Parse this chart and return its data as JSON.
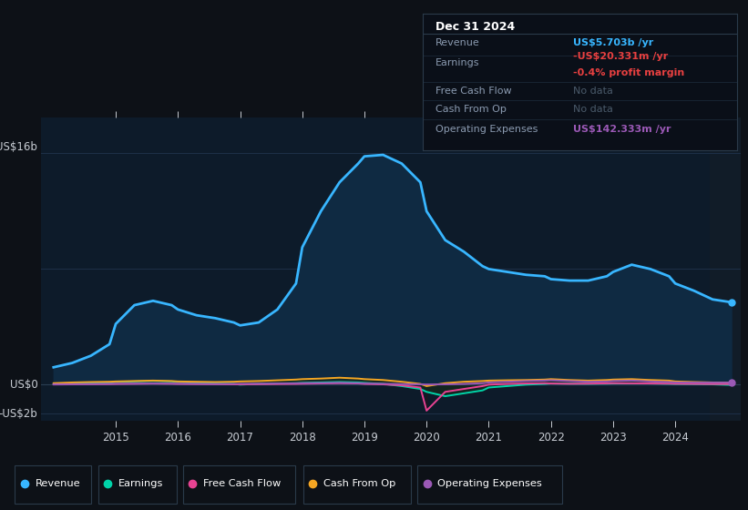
{
  "bg_color": "#0d1117",
  "plot_bg_color": "#0d1b2a",
  "title": "Dec 31 2024",
  "ylabel_top": "US$16b",
  "ylabel_zero": "US$0",
  "ylabel_neg": "-US$2b",
  "x_years": [
    2014.0,
    2014.3,
    2014.6,
    2014.9,
    2015.0,
    2015.3,
    2015.6,
    2015.9,
    2016.0,
    2016.3,
    2016.6,
    2016.9,
    2017.0,
    2017.3,
    2017.6,
    2017.9,
    2018.0,
    2018.3,
    2018.6,
    2018.9,
    2019.0,
    2019.3,
    2019.6,
    2019.9,
    2020.0,
    2020.3,
    2020.6,
    2020.9,
    2021.0,
    2021.3,
    2021.6,
    2021.9,
    2022.0,
    2022.3,
    2022.6,
    2022.9,
    2023.0,
    2023.3,
    2023.6,
    2023.9,
    2024.0,
    2024.3,
    2024.6,
    2024.9
  ],
  "revenue": [
    1.2,
    1.5,
    2.0,
    2.8,
    4.2,
    5.5,
    5.8,
    5.5,
    5.2,
    4.8,
    4.6,
    4.3,
    4.1,
    4.3,
    5.2,
    7.0,
    9.5,
    12.0,
    14.0,
    15.3,
    15.8,
    15.9,
    15.3,
    14.0,
    12.0,
    10.0,
    9.2,
    8.2,
    8.0,
    7.8,
    7.6,
    7.5,
    7.3,
    7.2,
    7.2,
    7.5,
    7.8,
    8.3,
    8.0,
    7.5,
    7.0,
    6.5,
    5.9,
    5.7
  ],
  "earnings": [
    0.05,
    0.08,
    0.1,
    0.12,
    0.18,
    0.22,
    0.25,
    0.22,
    0.18,
    0.12,
    0.08,
    0.05,
    0.0,
    0.05,
    0.08,
    0.1,
    0.12,
    0.15,
    0.18,
    0.15,
    0.12,
    0.05,
    -0.1,
    -0.3,
    -0.5,
    -0.8,
    -0.6,
    -0.4,
    -0.2,
    -0.1,
    0.0,
    0.05,
    0.08,
    0.07,
    0.06,
    0.07,
    0.08,
    0.09,
    0.08,
    0.06,
    0.05,
    0.04,
    0.02,
    -0.02
  ],
  "free_cash_flow": [
    0.01,
    0.02,
    0.03,
    0.04,
    0.05,
    0.06,
    0.07,
    0.06,
    0.05,
    0.04,
    0.03,
    0.02,
    0.02,
    0.03,
    0.04,
    0.05,
    0.06,
    0.08,
    0.1,
    0.08,
    0.05,
    0.02,
    -0.05,
    -0.2,
    -1.8,
    -0.5,
    -0.3,
    -0.1,
    0.0,
    0.05,
    0.08,
    0.1,
    0.08,
    0.06,
    0.07,
    0.09,
    0.1,
    0.09,
    0.08,
    0.07,
    0.06,
    0.05,
    0.04,
    0.04
  ],
  "cash_from_op": [
    0.1,
    0.15,
    0.18,
    0.2,
    0.22,
    0.25,
    0.28,
    0.25,
    0.22,
    0.2,
    0.18,
    0.2,
    0.22,
    0.25,
    0.3,
    0.35,
    0.38,
    0.42,
    0.48,
    0.42,
    0.38,
    0.32,
    0.2,
    0.05,
    -0.1,
    0.1,
    0.2,
    0.25,
    0.28,
    0.3,
    0.32,
    0.35,
    0.38,
    0.32,
    0.28,
    0.32,
    0.35,
    0.38,
    0.32,
    0.28,
    0.22,
    0.18,
    0.15,
    0.14
  ],
  "op_expenses": [
    0.02,
    0.03,
    0.04,
    0.05,
    0.06,
    0.07,
    0.08,
    0.07,
    0.06,
    0.05,
    0.04,
    0.05,
    0.06,
    0.07,
    0.08,
    0.09,
    0.1,
    0.11,
    0.12,
    0.1,
    0.08,
    0.06,
    0.04,
    0.02,
    0.01,
    0.02,
    0.05,
    0.1,
    0.15,
    0.2,
    0.25,
    0.28,
    0.3,
    0.25,
    0.2,
    0.22,
    0.25,
    0.28,
    0.22,
    0.18,
    0.15,
    0.14,
    0.14,
    0.14
  ],
  "revenue_color": "#38b6ff",
  "revenue_fill": "#0f2a42",
  "earnings_color": "#00d4aa",
  "free_cash_color": "#e84393",
  "cash_from_op_color": "#f5a623",
  "op_expenses_color": "#9b59b6",
  "ylim_min": -2.5,
  "ylim_max": 18.5,
  "grid_color": "#1e2d3d",
  "text_color": "#c8cdd4",
  "tooltip_bg": "#0a0f18",
  "tooltip_border": "#2a3a4a",
  "info_title": "Dec 31 2024",
  "info_revenue_label": "Revenue",
  "info_revenue_value": "US$5.703b /yr",
  "info_earnings_label": "Earnings",
  "info_earnings_value": "-US$20.331m /yr",
  "info_margin": "-0.4% profit margin",
  "info_fcf_label": "Free Cash Flow",
  "info_fcf_value": "No data",
  "info_cfo_label": "Cash From Op",
  "info_cfo_value": "No data",
  "info_opex_label": "Operating Expenses",
  "info_opex_value": "US$142.333m /yr",
  "legend_items": [
    "Revenue",
    "Earnings",
    "Free Cash Flow",
    "Cash From Op",
    "Operating Expenses"
  ],
  "legend_colors": [
    "#38b6ff",
    "#00d4aa",
    "#e84393",
    "#f5a623",
    "#9b59b6"
  ]
}
